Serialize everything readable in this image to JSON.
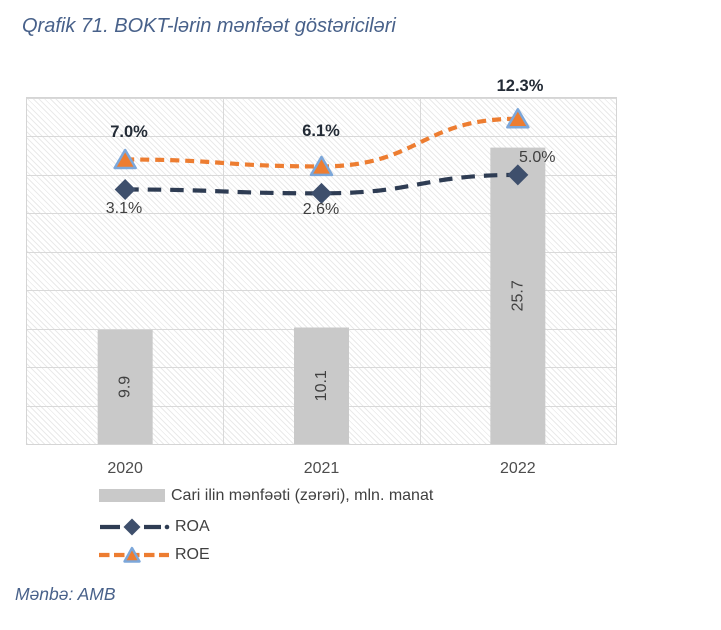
{
  "page": {
    "title": "Qrafik 71. BOKT-lərin mənfəət göstəriciləri",
    "source": "Mənbə: AMB"
  },
  "colors": {
    "title_text": "#48618A",
    "source_text": "#48618A",
    "grid": "#D9D9D9",
    "bar_fill": "#C9C9C9",
    "bar_label": "#404040",
    "axis_label": "#4D4D4D",
    "legend_text": "#404040",
    "roa_line": "#2E3C53",
    "roa_marker": "#3E4F6C",
    "roe_line": "#ED7D31",
    "roe_marker_fill": "#ED7D31",
    "roe_marker_stroke": "#7CA7DA",
    "pct_bold_text": "#232B36",
    "pct_regular_text": "#404040"
  },
  "chart_data": {
    "type": "combo (bar + smooth dashed lines)",
    "title": "Qrafik 71. BOKT-lərin mənfəət göstəriciləri",
    "categories": [
      "2020",
      "2021",
      "2022"
    ],
    "series": [
      {
        "name": "Cari ilin mənfəəti (zərəri), mln. manat",
        "type": "bar",
        "axis": "primary",
        "values": [
          9.9,
          10.1,
          25.7
        ],
        "labels": [
          "9.9",
          "10.1",
          "25.7"
        ]
      },
      {
        "name": "ROA",
        "type": "line",
        "axis": "secondary",
        "values": [
          3.1,
          2.6,
          5.0
        ],
        "labels": [
          "3.1%",
          "2.6%",
          "5.0%"
        ]
      },
      {
        "name": "ROE",
        "type": "line",
        "axis": "secondary",
        "values": [
          7.0,
          6.1,
          12.3
        ],
        "labels": [
          "7.0%",
          "6.1%",
          "12.3%"
        ]
      }
    ],
    "primary_axis": {
      "min": 0,
      "max": 30,
      "tick_labels_visible": false
    },
    "secondary_axis": {
      "min": -30,
      "max": 15,
      "gridline_step": 5,
      "tick_labels_visible": false
    },
    "gridlines": {
      "horizontal_bands": 9,
      "vertical_category_boundaries": true
    },
    "plot_background": "light diagonal hatch",
    "legend_position": "bottom-left"
  }
}
